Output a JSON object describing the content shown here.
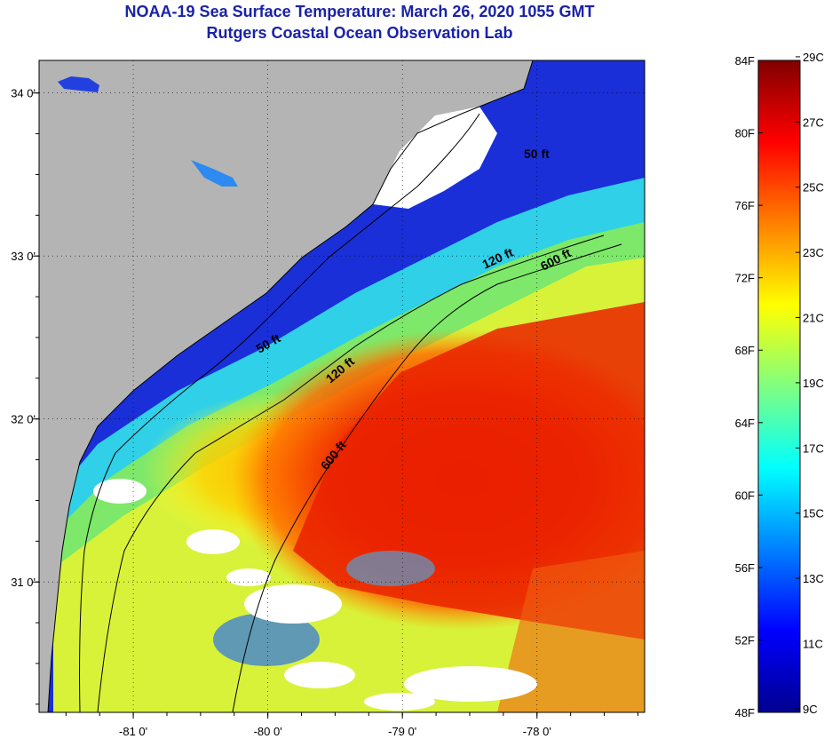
{
  "title": {
    "line1": "NOAA-19 Sea Surface Temperature:  March 26, 2020 1055 GMT",
    "line2": "Rutgers Coastal Ocean Observation Lab"
  },
  "map": {
    "lon_range": [
      -81.7,
      -77.2
    ],
    "lat_range": [
      30.2,
      34.2
    ],
    "x_ticks": [
      {
        "value": -81,
        "label": "-81 0'"
      },
      {
        "value": -80,
        "label": "-80 0'"
      },
      {
        "value": -79,
        "label": "-79 0'"
      },
      {
        "value": -78,
        "label": "-78 0'"
      }
    ],
    "y_ticks": [
      {
        "value": 34,
        "label": "34 0'"
      },
      {
        "value": 33,
        "label": "33 0'"
      },
      {
        "value": 32,
        "label": "32 0'"
      },
      {
        "value": 31,
        "label": "31 0'"
      }
    ],
    "land_color": "#b4b4b4",
    "cloud_color": "#ffffff",
    "contours": [
      {
        "depth": "50 ft",
        "labels": [
          "50 ft",
          "50 ft"
        ]
      },
      {
        "depth": "120 ft",
        "labels": [
          "120 ft",
          "120 ft"
        ]
      },
      {
        "depth": "600 ft",
        "labels": [
          "600 ft",
          "600 ft"
        ]
      }
    ]
  },
  "colorbar": {
    "fahrenheit_labels": [
      "84F",
      "80F",
      "76F",
      "72F",
      "68F",
      "64F",
      "60F",
      "56F",
      "52F",
      "48F"
    ],
    "fahrenheit_values": [
      84,
      80,
      76,
      72,
      68,
      64,
      60,
      56,
      52,
      48
    ],
    "celsius_labels": [
      "29C",
      "27C",
      "25C",
      "23C",
      "21C",
      "19C",
      "17C",
      "15C",
      "13C",
      "11C",
      "9C"
    ],
    "celsius_values": [
      29,
      27,
      25,
      23,
      21,
      19,
      17,
      15,
      13,
      11,
      9
    ],
    "range_f": [
      48,
      84
    ],
    "colors": [
      "#00008f",
      "#0000ff",
      "#0080ff",
      "#00ffff",
      "#80ff80",
      "#ffff00",
      "#ff8000",
      "#ff0000",
      "#800000"
    ]
  }
}
